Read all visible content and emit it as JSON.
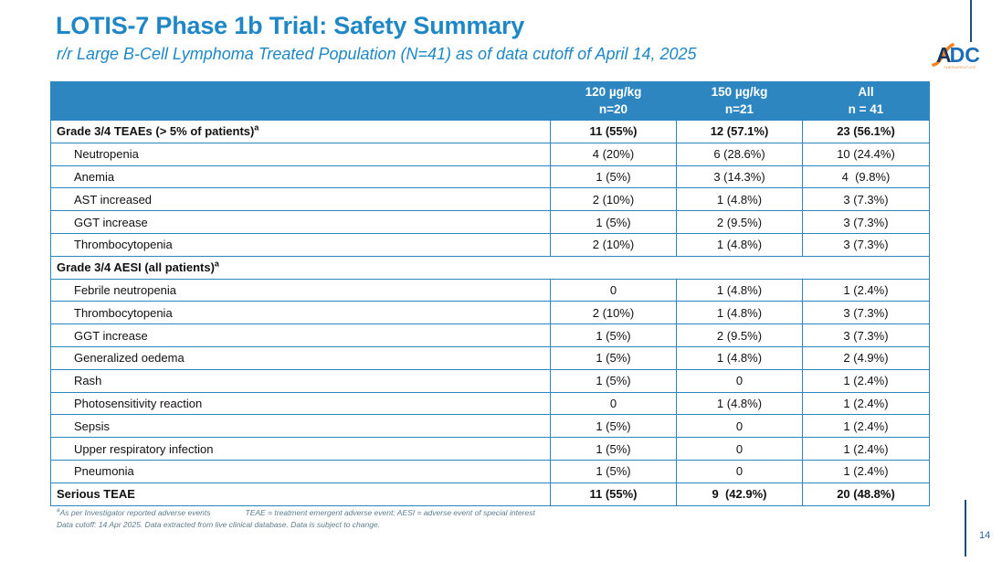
{
  "slide": {
    "title": "LOTIS-7 Phase 1b Trial: Safety Summary",
    "subtitle": "r/r Large B-Cell Lymphoma Treated Population (N=41) as of data cutoff of April 14, 2025",
    "page_number": "14"
  },
  "logo": {
    "part1": "A",
    "part2": "DC",
    "subtext": "THERAPEUTICS"
  },
  "table": {
    "header": {
      "columns": [
        {
          "dose": "120 µg/kg",
          "n": "n=20"
        },
        {
          "dose": "150 µg/kg",
          "n": "n=21"
        },
        {
          "dose": "All",
          "n": "n = 41"
        }
      ]
    },
    "rows": [
      {
        "label": "Grade 3/4 TEAEs (> 5% of patients)",
        "sup": "a",
        "bold": true,
        "indent": false,
        "span": false,
        "bold_values": true,
        "values": [
          "11 (55%)",
          "12 (57.1%)",
          "23 (56.1%)"
        ]
      },
      {
        "label": "Neutropenia",
        "indent": true,
        "values": [
          "4 (20%)",
          "6 (28.6%)",
          "10 (24.4%)"
        ]
      },
      {
        "label": "Anemia",
        "indent": true,
        "values": [
          "1 (5%)",
          "3 (14.3%)",
          "4  (9.8%)"
        ]
      },
      {
        "label": "AST increased",
        "indent": true,
        "values": [
          "2 (10%)",
          "1 (4.8%)",
          "3 (7.3%)"
        ]
      },
      {
        "label": "GGT increase",
        "indent": true,
        "values": [
          "1 (5%)",
          "2 (9.5%)",
          "3 (7.3%)"
        ]
      },
      {
        "label": "Thrombocytopenia",
        "indent": true,
        "values": [
          "2 (10%)",
          "1 (4.8%)",
          "3 (7.3%)"
        ]
      },
      {
        "label": "Grade 3/4 AESI (all patients)",
        "sup": "a",
        "bold": true,
        "indent": false,
        "span": true,
        "values": []
      },
      {
        "label": "Febrile neutropenia",
        "indent": true,
        "values": [
          "0",
          "1 (4.8%)",
          "1 (2.4%)"
        ]
      },
      {
        "label": "Thrombocytopenia",
        "indent": true,
        "values": [
          "2 (10%)",
          "1 (4.8%)",
          "3 (7.3%)"
        ]
      },
      {
        "label": "GGT increase",
        "indent": true,
        "values": [
          "1 (5%)",
          "2 (9.5%)",
          "3 (7.3%)"
        ]
      },
      {
        "label": "Generalized oedema",
        "indent": true,
        "values": [
          "1 (5%)",
          "1 (4.8%)",
          "2 (4.9%)"
        ]
      },
      {
        "label": "Rash",
        "indent": true,
        "values": [
          "1 (5%)",
          "0",
          "1 (2.4%)"
        ]
      },
      {
        "label": "Photosensitivity reaction",
        "indent": true,
        "values": [
          "0",
          "1 (4.8%)",
          "1 (2.4%)"
        ]
      },
      {
        "label": "Sepsis",
        "indent": true,
        "values": [
          "1 (5%)",
          "0",
          "1 (2.4%)"
        ]
      },
      {
        "label": "Upper respiratory infection",
        "indent": true,
        "values": [
          "1 (5%)",
          "0",
          "1 (2.4%)"
        ]
      },
      {
        "label": "Pneumonia",
        "indent": true,
        "values": [
          "1 (5%)",
          "0",
          "1 (2.4%)"
        ]
      },
      {
        "label": "Serious TEAE",
        "bold": true,
        "indent": false,
        "span": false,
        "bold_values": true,
        "values": [
          "11 (55%)",
          "9  (42.9%)",
          "20 (48.8%)"
        ]
      }
    ]
  },
  "footnotes": {
    "sup": "a",
    "line1a": "As per Investigator reported adverse events",
    "line1b": "TEAE = treatment emergent adverse event; AESI = adverse event of special interest",
    "line2": "Data cutoff: 14 Apr 2025. Data extracted from live clinical database.  Data is subject to change."
  },
  "colors": {
    "accent_blue": "#1F87C5",
    "header_bg": "#2E86C1",
    "border_blue": "#2E86C1",
    "navy": "#1F4E79",
    "logo_navy": "#16355F",
    "logo_blue": "#1B6DB5",
    "logo_orange": "#F58220",
    "footnote_gray": "#5E7C8C"
  }
}
